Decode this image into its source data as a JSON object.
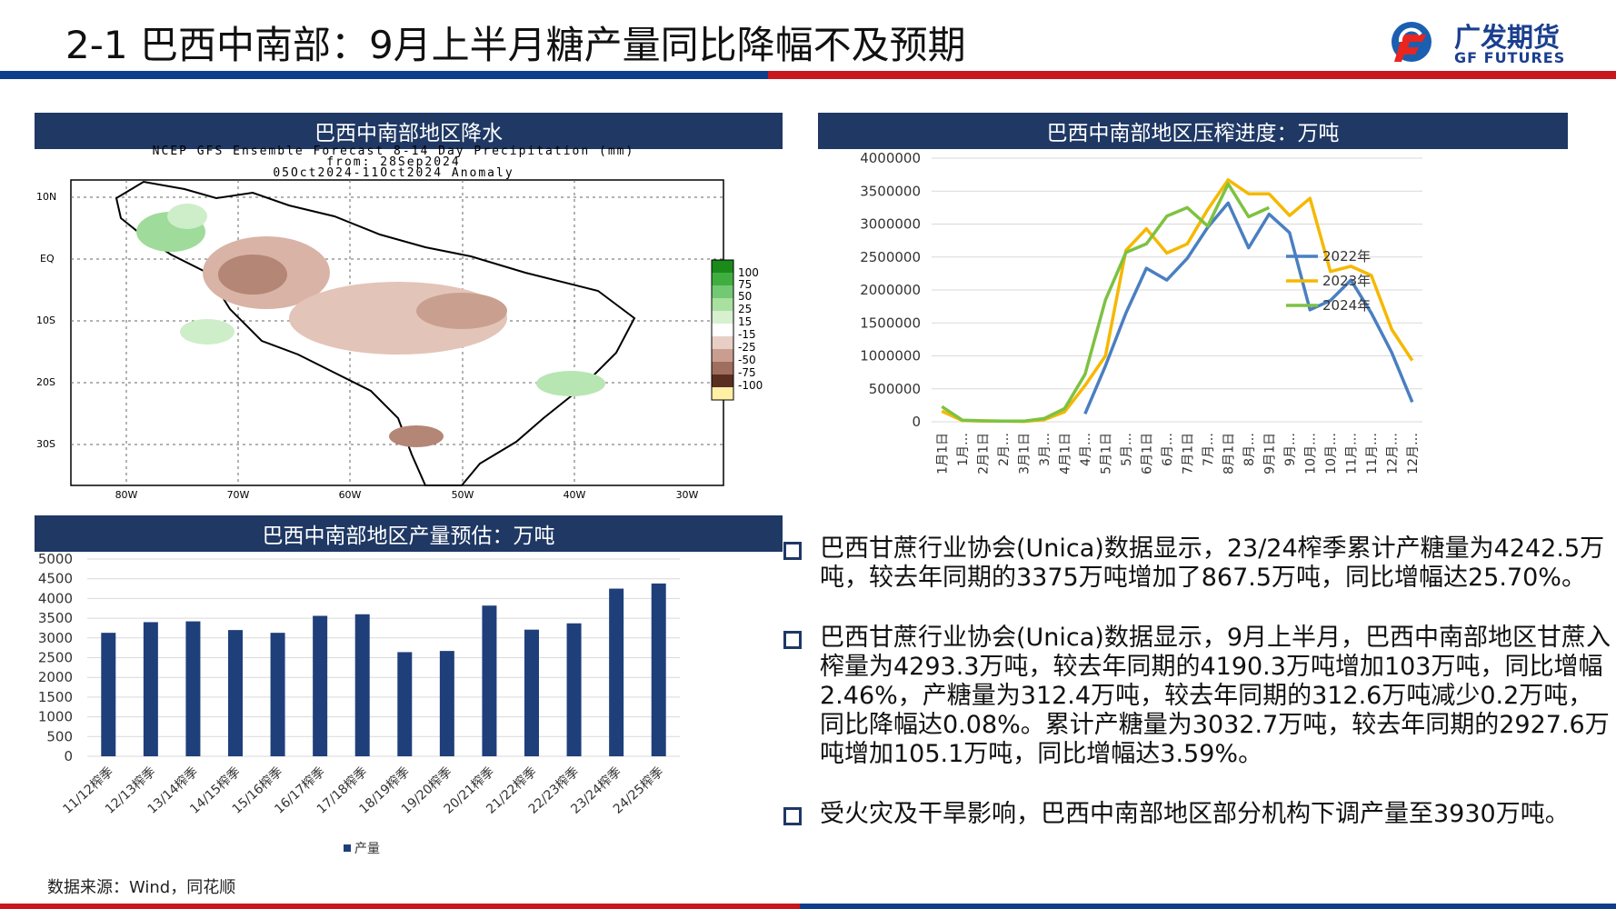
{
  "header": {
    "title": "2-1 巴西中南部：9月上半月糖产量同比降幅不及预期",
    "logo_cn": "广发期货",
    "logo_en": "GF FUTURES"
  },
  "colors": {
    "navy": "#1f3864",
    "blue_rule": "#0e3e8a",
    "red_rule": "#c8161d"
  },
  "map_panel": {
    "header": "巴西中南部地区降水",
    "map_title_1": "NCEP GFS Ensemble Forecast 8-14 Day Precipitation (mm)",
    "map_title_2": "from: 28Sep2024",
    "map_title_3": "05Oct2024-11Oct2024 Anomaly",
    "lat_labels": [
      "10N",
      "EQ",
      "10S",
      "20S",
      "30S"
    ],
    "lon_labels": [
      "80W",
      "70W",
      "60W",
      "50W",
      "40W",
      "30W"
    ],
    "scale_labels": [
      "100",
      "75",
      "50",
      "25",
      "15",
      "-15",
      "-25",
      "-50",
      "-75",
      "-100"
    ]
  },
  "chart_data": [
    {
      "type": "line",
      "title": "巴西中南部地区压榨进度：万吨",
      "x": [
        "1月1日",
        "1月…",
        "2月1日",
        "2月…",
        "3月1日",
        "3月…",
        "4月1日",
        "4月…",
        "5月1日",
        "5月…",
        "6月1日",
        "6月…",
        "7月1日",
        "7月…",
        "8月1日",
        "8月…",
        "9月1日",
        "9月…",
        "10月…",
        "10月…",
        "11月…",
        "11月…",
        "12月…",
        "12月…"
      ],
      "yticks": [
        "4000000",
        "3500000",
        "3000000",
        "2500000",
        "2000000",
        "1500000",
        "1000000",
        "500000",
        "0"
      ],
      "ylim": [
        0,
        4000000
      ],
      "series": [
        {
          "name": "2022年",
          "color": "#4a7fc1",
          "values": [
            null,
            null,
            null,
            null,
            null,
            null,
            null,
            120000,
            850000,
            1650000,
            2330000,
            2150000,
            2480000,
            2950000,
            3320000,
            2640000,
            3150000,
            2870000,
            1700000,
            1840000,
            2150000,
            1650000,
            1050000,
            300000
          ]
        },
        {
          "name": "2023年",
          "color": "#f5b800",
          "values": [
            160000,
            20000,
            10000,
            10000,
            5000,
            30000,
            150000,
            550000,
            1000000,
            2600000,
            2930000,
            2560000,
            2700000,
            3220000,
            3670000,
            3460000,
            3460000,
            3130000,
            3390000,
            2280000,
            2360000,
            2220000,
            1400000,
            930000
          ]
        },
        {
          "name": "2024年",
          "color": "#7dc242",
          "values": [
            230000,
            25000,
            15000,
            10000,
            10000,
            50000,
            200000,
            720000,
            1850000,
            2570000,
            2700000,
            3120000,
            3250000,
            2970000,
            3610000,
            3110000,
            3250000,
            null,
            null,
            null,
            null,
            null,
            null,
            null
          ]
        }
      ]
    },
    {
      "type": "bar",
      "title": "巴西中南部地区产量预估：万吨",
      "categories": [
        "11/12榨季",
        "12/13榨季",
        "13/14榨季",
        "14/15榨季",
        "15/16榨季",
        "16/17榨季",
        "17/18榨季",
        "18/19榨季",
        "19/20榨季",
        "20/21榨季",
        "21/22榨季",
        "22/23榨季",
        "23/24榨季",
        "24/25榨季"
      ],
      "series": [
        {
          "name": "产量",
          "color": "#1f3f7a",
          "values": [
            3130,
            3400,
            3420,
            3200,
            3130,
            3560,
            3600,
            2640,
            2670,
            3820,
            3210,
            3370,
            4250,
            4380
          ]
        }
      ],
      "yticks": [
        "5000",
        "4500",
        "4000",
        "3500",
        "3000",
        "2500",
        "2000",
        "1500",
        "1000",
        "500",
        "0"
      ],
      "ylim": [
        0,
        5000
      ]
    }
  ],
  "bullets": [
    "巴西甘蔗行业协会(Unica)数据显示，23/24榨季累计产糖量为4242.5万吨，较去年同期的3375万吨增加了867.5万吨，同比增幅达25.70%。",
    "巴西甘蔗行业协会(Unica)数据显示，9月上半月，巴西中南部地区甘蔗入榨量为4293.3万吨，较去年同期的4190.3万吨增加103万吨，同比增幅2.46%，产糖量为312.4万吨，较去年同期的312.6万吨减少0.2万吨，同比降幅达0.08%。累计产糖量为3032.7万吨，较去年同期的2927.6万吨增加105.1万吨，同比增幅达3.59%。",
    "受火灾及干旱影响，巴西中南部地区部分机构下调产量至3930万吨。"
  ],
  "footer": {
    "source": "数据来源：Wind，同花顺"
  }
}
